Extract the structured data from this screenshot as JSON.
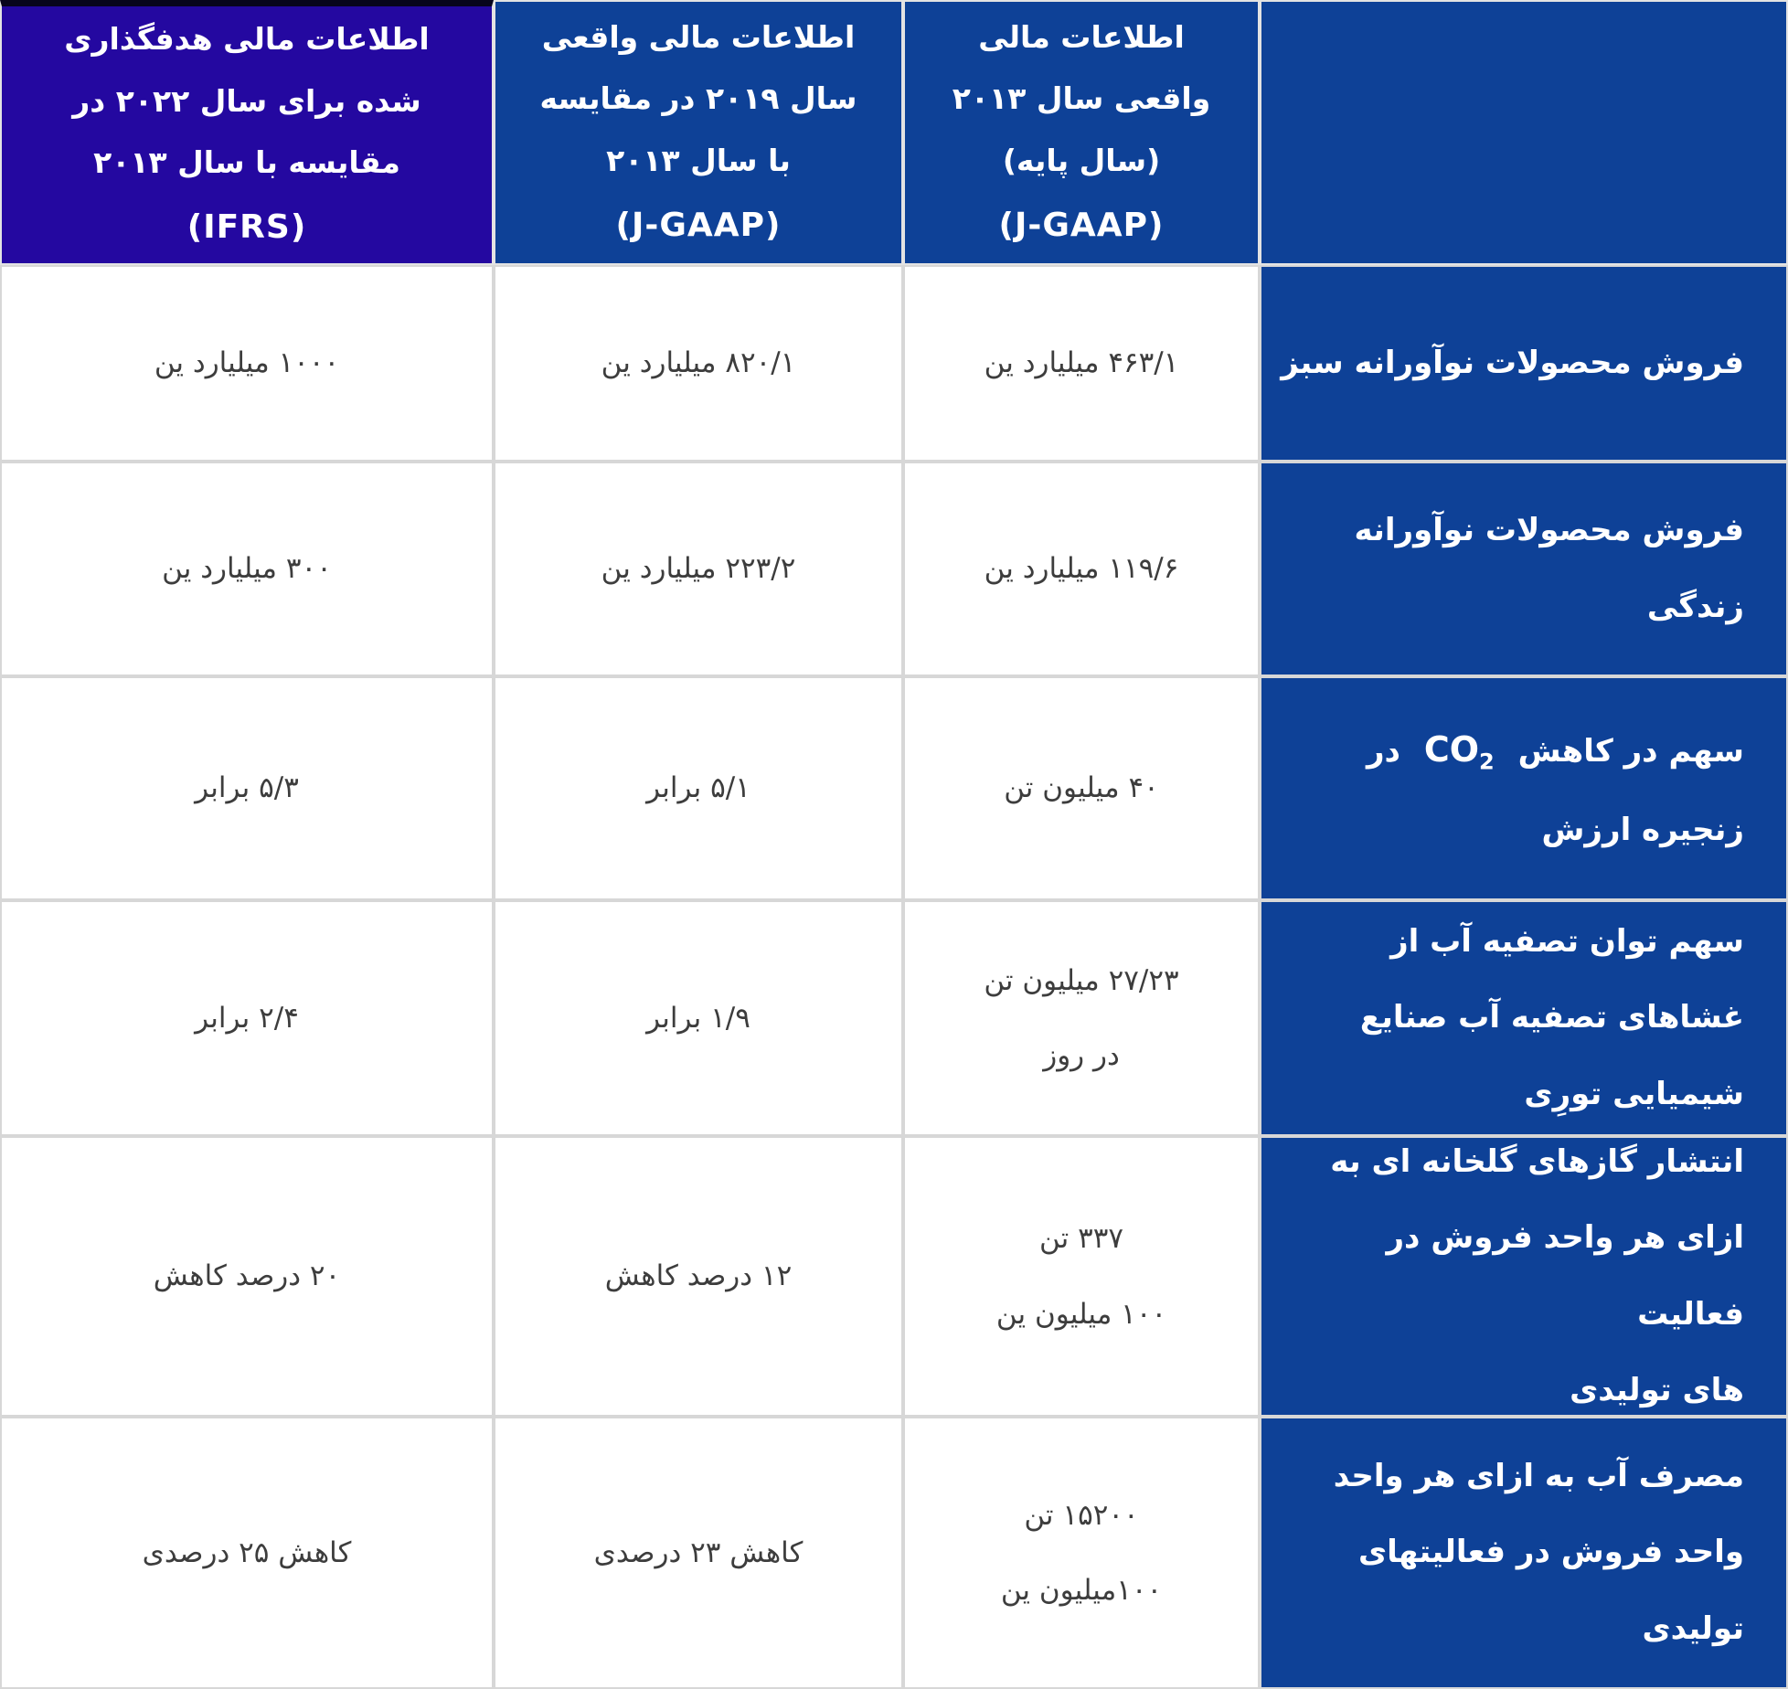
{
  "colors": {
    "header_blue": "#0e4197",
    "header_purple": "#2408a0",
    "data_text": "#3d3d3d",
    "grid_line": "#d7d7d7"
  },
  "table": {
    "header": {
      "base2013": [
        "اطلاعات مالی",
        "واقعی سال ۲۰۱۳",
        "(سال پایه)",
        "(J-GAAP)"
      ],
      "actual2019": [
        "اطلاعات مالی واقعی",
        "سال ۲۰۱۹ در مقایسه",
        "با سال ۲۰۱۳",
        "(J-GAAP)"
      ],
      "target2022": [
        "اطلاعات مالی هدفگذاری",
        "شده برای سال  ۲۰۲۲ در",
        "مقایسه با سال ۲۰۱۳",
        "(IFRS)"
      ]
    },
    "rows": [
      {
        "label": [
          "فروش محصولات نوآورانه سبز"
        ],
        "base2013": [
          "۴۶۳/۱  میلیارد ین"
        ],
        "actual2019": [
          "۸۲۰/۱ میلیارد ین"
        ],
        "target2022": [
          "۱۰۰۰  میلیارد ین"
        ]
      },
      {
        "label": [
          "فروش محصولات نوآورانه",
          "زندگی"
        ],
        "base2013": [
          "۱۱۹/۶  میلیارد ین"
        ],
        "actual2019": [
          "۲۲۳/۲ میلیارد ین"
        ],
        "target2022": [
          "۳۰۰  میلیارد ین"
        ]
      },
      {
        "label_parts": {
          "prefix": "سهم در کاهش",
          "gas": "CO",
          "gas_sub": "2",
          "suffix": "در",
          "line2": "زنجیره ارزش"
        },
        "base2013": [
          "۴۰  میلیون تن"
        ],
        "actual2019": [
          "۵/۱  برابر"
        ],
        "target2022": [
          "۵/۳  برابر"
        ]
      },
      {
        "label": [
          "سهم توان تصفیه آب از",
          "غشاهای تصفیه آب صنایع",
          "شیمیایی تورِی"
        ],
        "base2013": [
          "۲۷/۲۳ میلیون تن",
          "در روز"
        ],
        "actual2019": [
          "۱/۹  برابر"
        ],
        "target2022": [
          "۲/۴ برابر"
        ]
      },
      {
        "label": [
          "انتشار گازهای گلخانه ای به",
          "ازای هر واحد فروش در فعالیت",
          "های تولیدی"
        ],
        "base2013": [
          "۳۳۷ تن",
          "۱۰۰ میلیون ین"
        ],
        "actual2019": [
          "۱۲  درصد کاهش"
        ],
        "target2022": [
          "۲۰ درصد کاهش"
        ]
      },
      {
        "label": [
          "مصرف آب به ازای هر واحد",
          "واحد فروش در فعالیتهای",
          "تولیدی"
        ],
        "base2013": [
          "۱۵۲۰۰ تن",
          "۱۰۰میلیون ین"
        ],
        "actual2019": [
          "کاهش ۲۳ درصدی"
        ],
        "target2022": [
          "کاهش ۲۵ درصدی"
        ]
      }
    ]
  }
}
